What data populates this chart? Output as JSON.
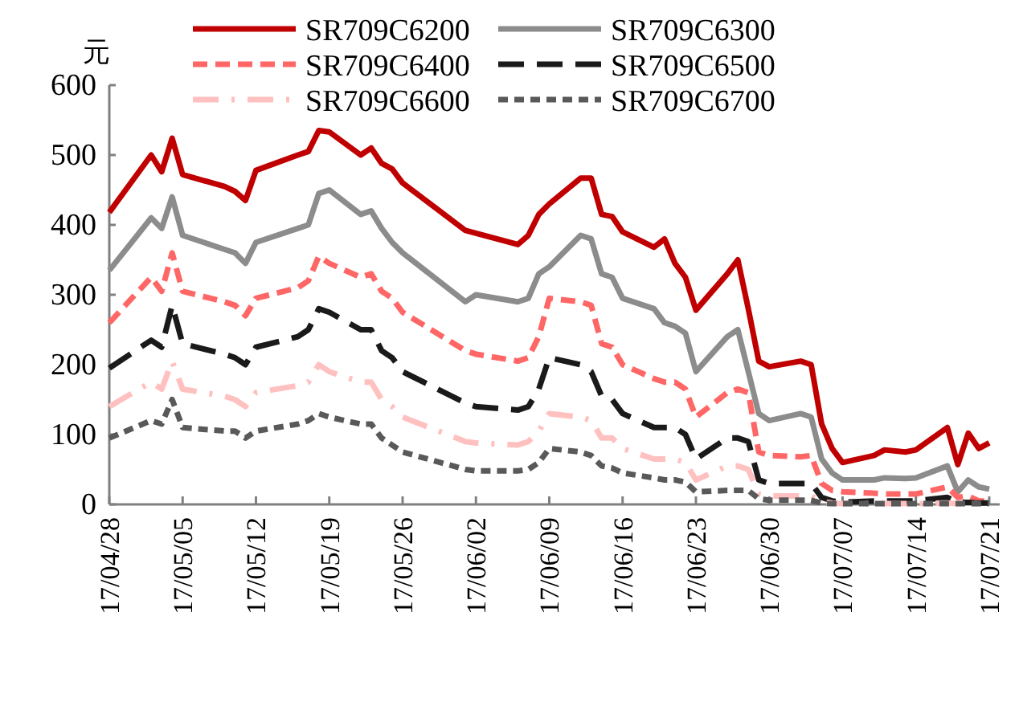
{
  "chart_data": {
    "type": "line",
    "ylabel": "元",
    "x": [
      "--04-28",
      "--05-02",
      "--05-03",
      "--05-04",
      "--05-05",
      "--05-09",
      "--05-10",
      "--05-11",
      "--05-12",
      "--05-16",
      "--05-17",
      "--05-18",
      "--05-19",
      "--05-22",
      "--05-23",
      "--05-24",
      "--05-25",
      "--05-26",
      "--06-01",
      "--06-02",
      "--06-06",
      "--06-07",
      "--06-08",
      "--06-09",
      "--06-12",
      "--06-13",
      "--06-14",
      "--06-15",
      "--06-16",
      "--06-19",
      "--06-20",
      "--06-21",
      "--06-22",
      "--06-23",
      "--06-26",
      "--06-27",
      "--06-28",
      "--06-29",
      "--06-30",
      "--07-03",
      "--07-04",
      "--07-05",
      "--07-06",
      "--07-07",
      "--07-10",
      "--07-11",
      "--07-13",
      "--07-14",
      "--07-17",
      "--07-18",
      "--07-19",
      "--07-20",
      "--07-21"
    ],
    "series": [
      {
        "name": "SR709C6200",
        "color": "#c00000",
        "line_style": "solid",
        "values": [
          418,
          500,
          476,
          524,
          472,
          455,
          448,
          435,
          478,
          500,
          505,
          535,
          533,
          500,
          510,
          488,
          480,
          460,
          392,
          388,
          372,
          385,
          415,
          430,
          467,
          467,
          415,
          412,
          390,
          368,
          380,
          345,
          325,
          278,
          330,
          350,
          280,
          205,
          197,
          205,
          200,
          115,
          80,
          60,
          70,
          78,
          75,
          78,
          110,
          57,
          102,
          80,
          88
        ]
      },
      {
        "name": "SR709C6300",
        "color": "#8c8c8c",
        "line_style": "solid",
        "values": [
          335,
          410,
          395,
          440,
          385,
          365,
          360,
          345,
          375,
          395,
          400,
          445,
          450,
          415,
          420,
          395,
          375,
          360,
          290,
          300,
          290,
          295,
          330,
          340,
          385,
          380,
          330,
          325,
          295,
          280,
          260,
          255,
          245,
          190,
          240,
          250,
          190,
          130,
          120,
          130,
          125,
          65,
          45,
          35,
          35,
          38,
          37,
          38,
          55,
          18,
          35,
          25,
          22
        ]
      },
      {
        "name": "SR709C6400",
        "color": "#ff6666",
        "line_style": "dashed",
        "values": [
          260,
          325,
          305,
          360,
          305,
          290,
          285,
          270,
          295,
          310,
          320,
          355,
          345,
          325,
          330,
          305,
          295,
          275,
          220,
          215,
          205,
          210,
          240,
          295,
          290,
          285,
          230,
          225,
          200,
          180,
          175,
          175,
          165,
          125,
          160,
          165,
          160,
          75,
          70,
          68,
          70,
          30,
          20,
          18,
          16,
          15,
          15,
          15,
          25,
          10,
          12,
          5,
          5
        ]
      },
      {
        "name": "SR709C6500",
        "color": "#1a1a1a",
        "line_style": "dashed",
        "values": [
          195,
          235,
          225,
          285,
          230,
          215,
          210,
          200,
          225,
          240,
          250,
          280,
          275,
          250,
          250,
          220,
          210,
          190,
          145,
          140,
          135,
          140,
          165,
          210,
          200,
          190,
          155,
          150,
          130,
          110,
          110,
          110,
          100,
          65,
          95,
          95,
          90,
          35,
          30,
          30,
          30,
          10,
          5,
          3,
          5,
          5,
          5,
          5,
          10,
          3,
          3,
          2,
          2
        ]
      },
      {
        "name": "SR709C6600",
        "color": "#ffc0c0",
        "line_style": "dashed",
        "values": [
          140,
          175,
          165,
          205,
          165,
          155,
          150,
          140,
          160,
          170,
          175,
          200,
          190,
          175,
          175,
          150,
          140,
          125,
          90,
          88,
          85,
          90,
          105,
          130,
          125,
          120,
          95,
          95,
          80,
          65,
          65,
          65,
          60,
          35,
          55,
          55,
          50,
          15,
          12,
          12,
          12,
          4,
          2,
          1,
          1,
          1,
          1,
          1,
          2,
          1,
          1,
          1,
          1
        ]
      },
      {
        "name": "SR709C6700",
        "color": "#595959",
        "line_style": "dashed",
        "values": [
          95,
          120,
          115,
          150,
          110,
          105,
          105,
          95,
          105,
          115,
          120,
          130,
          125,
          115,
          115,
          95,
          85,
          75,
          50,
          48,
          48,
          50,
          60,
          80,
          75,
          70,
          55,
          52,
          45,
          38,
          35,
          35,
          32,
          18,
          20,
          20,
          20,
          8,
          6,
          6,
          6,
          2,
          1,
          1,
          1,
          1,
          1,
          1,
          1,
          1,
          1,
          1,
          1
        ]
      }
    ],
    "xlim": [
      "--04-28",
      "--07-22"
    ],
    "xticks": [
      {
        "value": "--04-28",
        "label": "17/04/28"
      },
      {
        "value": "--05-05",
        "label": "17/05/05"
      },
      {
        "value": "--05-12",
        "label": "17/05/12"
      },
      {
        "value": "--05-19",
        "label": "17/05/19"
      },
      {
        "value": "--05-26",
        "label": "17/05/26"
      },
      {
        "value": "--06-02",
        "label": "17/06/02"
      },
      {
        "value": "--06-09",
        "label": "17/06/09"
      },
      {
        "value": "--06-16",
        "label": "17/06/16"
      },
      {
        "value": "--06-23",
        "label": "17/06/23"
      },
      {
        "value": "--06-30",
        "label": "17/06/30"
      },
      {
        "value": "--07-07",
        "label": "17/07/07"
      },
      {
        "value": "--07-14",
        "label": "17/07/14"
      },
      {
        "value": "--07-21",
        "label": "17/07/21"
      }
    ],
    "ylim": [
      0,
      600
    ],
    "yticks": [
      0,
      100,
      200,
      300,
      400,
      500,
      600
    ],
    "grid": false,
    "legend": "top"
  }
}
